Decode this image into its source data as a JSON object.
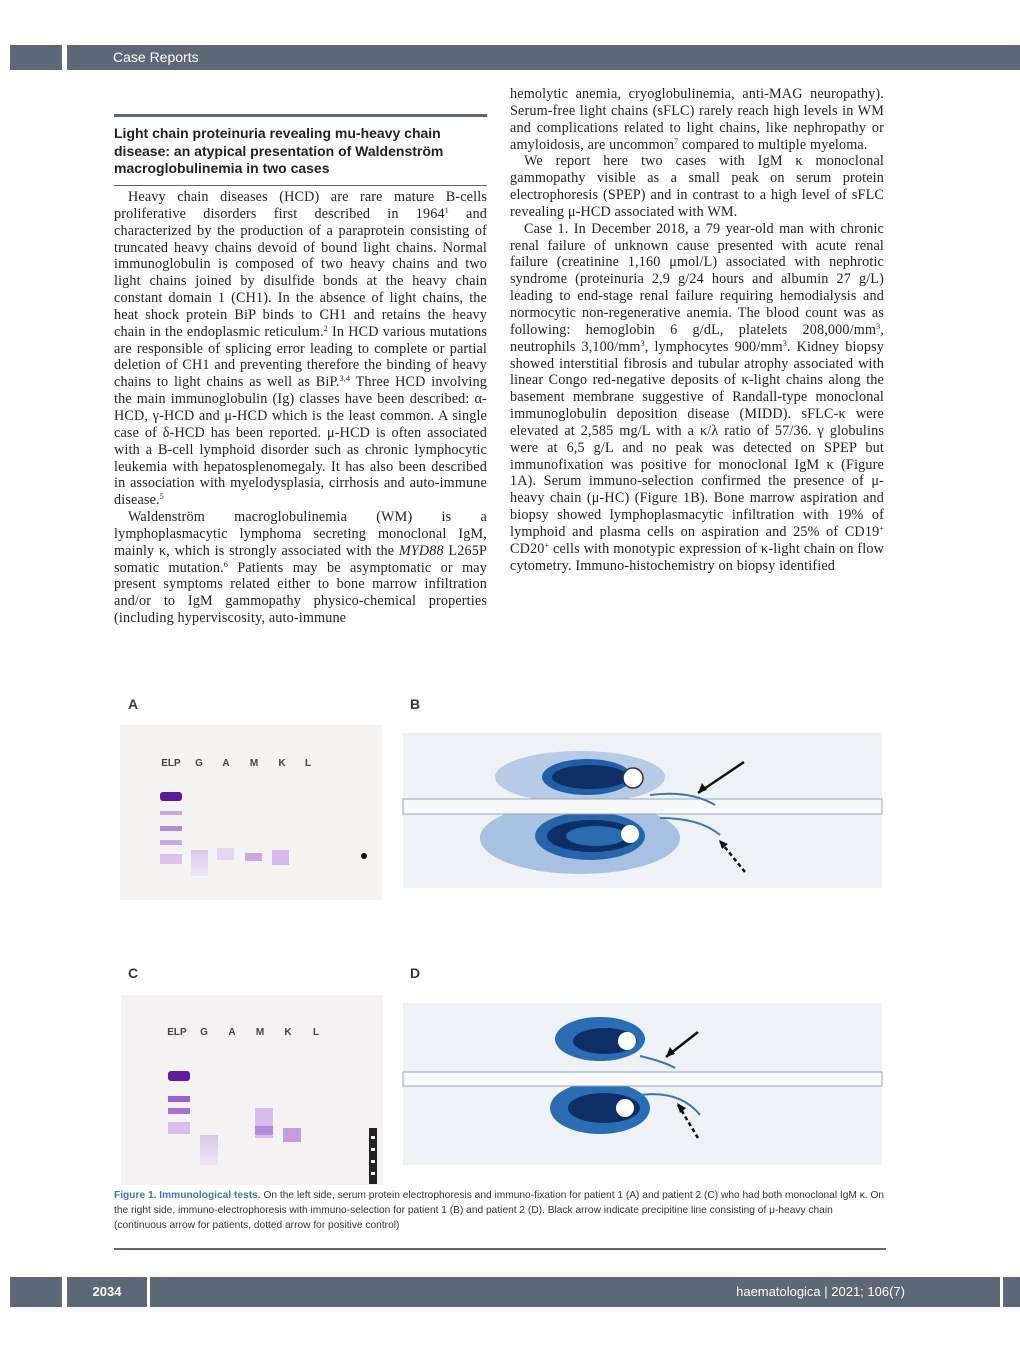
{
  "header": {
    "section": "Case Reports"
  },
  "article": {
    "title": "Light chain proteinuria revealing mu-heavy chain disease: an atypical presentation of Waldenström macroglobulinemia in two cases",
    "left": [
      [
        "Heavy chain diseases (HCD) are rare mature B-cells proliferative disorders first described in 1964",
        {
          "sup": "1"
        },
        " and characterized by the production of a paraprotein consisting of truncated heavy chains devoid of bound light chains. Normal immunoglobulin is composed of two heavy chains and two light chains joined by disulfide bonds at the heavy chain constant domain 1 (CH1). In the absence of light chains, the heat shock protein BiP binds to CH1 and retains the heavy chain in the endoplasmic reticulum.",
        {
          "sup": "2"
        },
        " In HCD various mutations are responsible of splicing error leading to complete or partial deletion of CH1 and preventing therefore the binding of heavy chains to light chains as well as BiP.",
        {
          "sup": "3,4"
        },
        " Three HCD involving the main immunoglobulin (Ig) classes have been described: α-HCD, γ-HCD and μ-HCD which is the least common. A single case of δ-HCD has been reported. μ-HCD is often associated with a B-cell lymphoid disorder such as chronic lymphocytic leukemia with hepatosplenomegaly. It has also been described in association with myelodysplasia, cirrhosis and auto-immune disease.",
        {
          "sup": "5"
        }
      ],
      [
        "Waldenström macroglobulinemia (WM) is a lymphoplasmacytic lymphoma secreting monoclonal IgM, mainly κ, which is strongly associated with the ",
        {
          "italic": "MYD88"
        },
        " L265P somatic mutation.",
        {
          "sup": "6"
        },
        " Patients may be asymptomatic or may present symptoms related either to bone marrow infiltration and/or to IgM gammopathy physico-chemical properties (including hyperviscosity, auto-immune"
      ]
    ],
    "right": [
      [
        "hemolytic anemia, cryoglobulinemia, anti-MAG neuropathy). Serum-free light chains (sFLC) rarely reach high levels in WM and complications related to light chains, like nephropathy or amyloidosis, are uncommon",
        {
          "sup": "7"
        },
        " compared to multiple myeloma."
      ],
      [
        "We report here two cases with IgM κ monoclonal gammopathy visible as a small peak on serum protein electrophoresis (SPEP) and in contrast to a high level of sFLC revealing μ-HCD associated with WM."
      ],
      [
        "Case 1. In December 2018, a 79 year-old man with chronic renal failure of unknown cause presented with acute renal failure (creatinine 1,160 μmol/L) associated with nephrotic syndrome (proteinuria 2,9 g/24 hours and albumin 27 g/L) leading to end-stage renal failure requiring hemodialysis and normocytic non-regenerative anemia. The blood count was as following: hemoglobin 6 g/dL, platelets 208,000/mm",
        {
          "sup": "3"
        },
        ", neutrophils 3,100/mm",
        {
          "sup": "3"
        },
        ", lymphocytes 900/mm",
        {
          "sup": "3"
        },
        ". Kidney biopsy showed interstitial fibrosis and tubular atrophy associated with linear Congo red-negative deposits of κ-light chains along the basement membrane suggestive of Randall-type monoclonal immunoglobulin deposition disease (MIDD). sFLC-κ were elevated at 2,585 mg/L with a κ/λ ratio of 57/36. γ globulins were at 6,5 g/L and no peak was detected on SPEP but immunofixation was positive for monoclonal IgM κ (Figure 1A). Serum immuno-selection confirmed the presence of μ-heavy chain (μ-HC) (Figure 1B). Bone marrow aspiration and biopsy showed lymphoplasmacytic infiltration with 19% of lymphoid and plasma cells on aspiration and 25% of CD19",
        {
          "sup": "+"
        },
        " CD20",
        {
          "sup": "+"
        },
        " cells with monotypic expression of κ-light chain on flow cytometry. Immuno-histochemistry on biopsy identified"
      ]
    ]
  },
  "figure": {
    "panels": [
      {
        "label": "A",
        "lanes": [
          "ELP",
          "G",
          "A",
          "M",
          "K",
          "L"
        ]
      },
      {
        "label": "B"
      },
      {
        "label": "C",
        "lanes": [
          "ELP",
          "G",
          "A",
          "M",
          "K",
          "L"
        ]
      },
      {
        "label": "D"
      }
    ],
    "caption": {
      "title": "Figure 1. Immunological tests.",
      "text": " On the left side, serum protein electrophoresis and immuno-fixation for patient 1 (A) and patient 2 (C) who had both monoclonal IgM κ. On the right side, immuno-electrophoresis with immuno-selection for patient 1 (B) and patient 2 (D). Black arrow indicate precipitine line consisting of μ-heavy chain (continuous arrow for patients, dotted arrow for positive control)"
    }
  },
  "footer": {
    "page": "2034",
    "journal": "haematologica | 2021; 106(7)"
  }
}
